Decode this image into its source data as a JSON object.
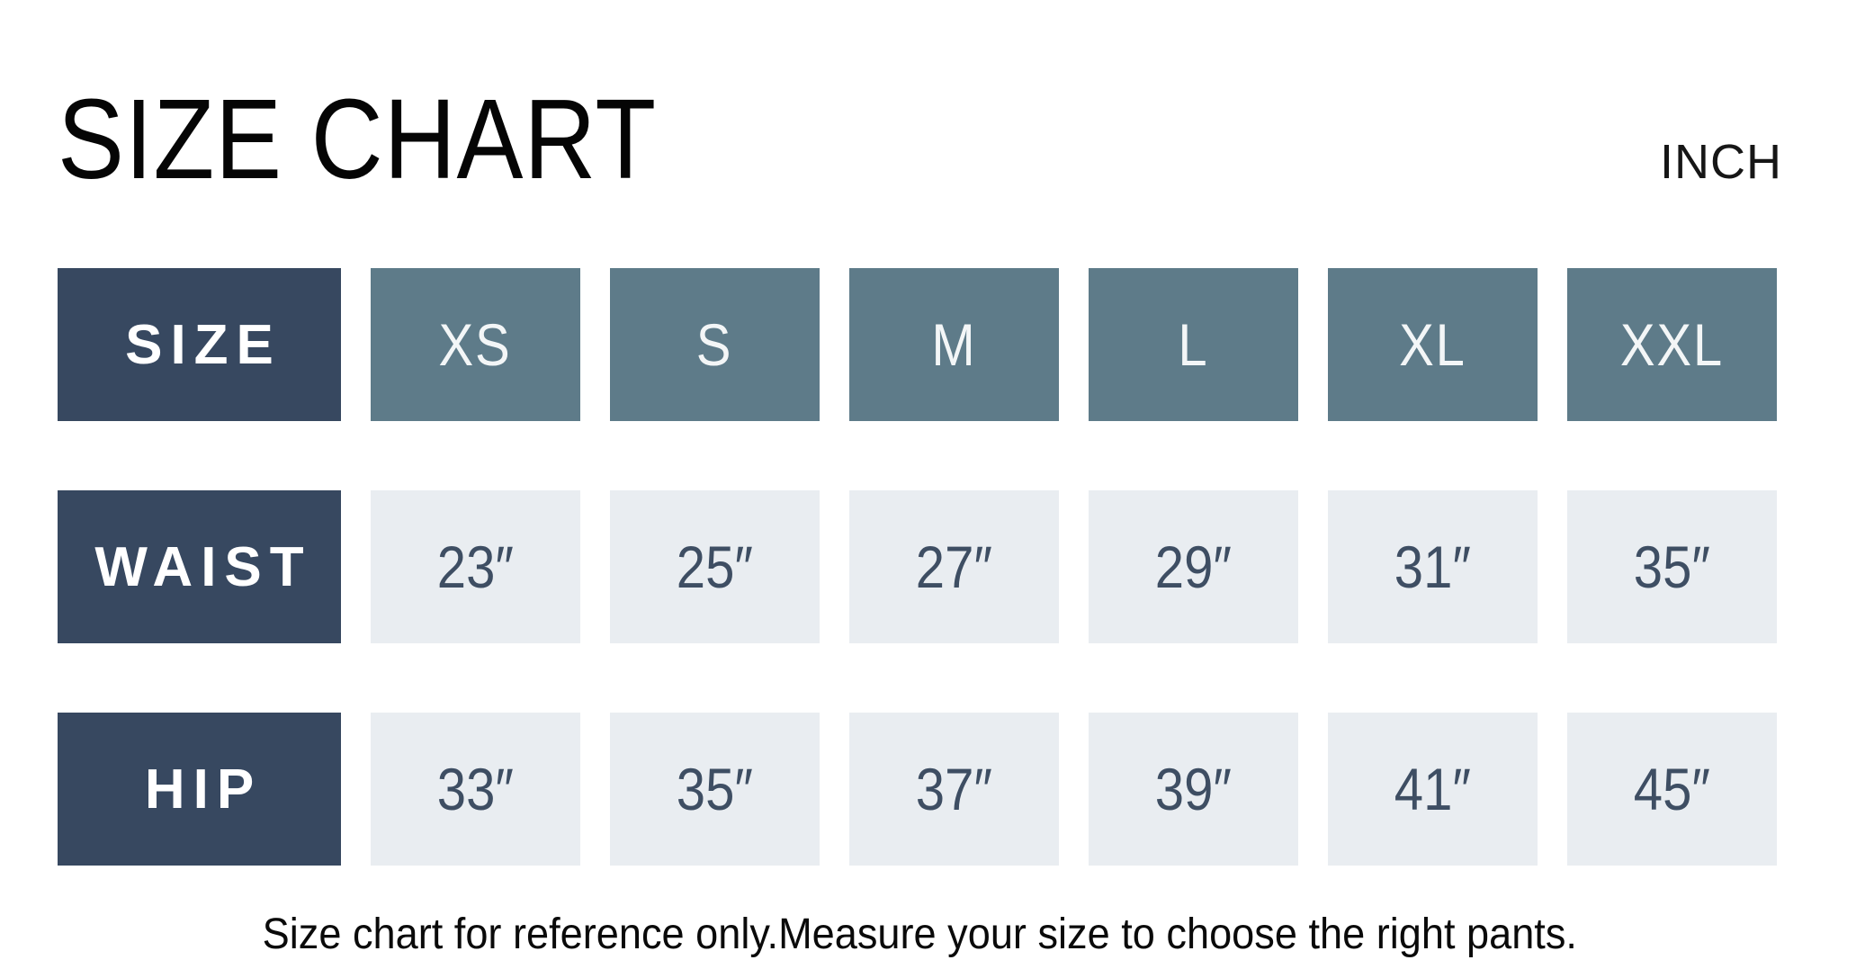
{
  "title": "SIZE CHART",
  "unit_label": "INCH",
  "footer_note": "Size chart for reference only.Measure your size to choose the right pants.",
  "colors": {
    "label_bg": "#374860",
    "size_bg": "#5e7b89",
    "size_text": "#f3f6f7",
    "value_bg": "#e9edf1",
    "value_text": "#3e4e63"
  },
  "table": {
    "rows": [
      {
        "label": "SIZE",
        "values": [
          "XS",
          "S",
          "M",
          "L",
          "XL",
          "XXL"
        ]
      },
      {
        "label": "WAIST",
        "values": [
          "23″",
          "25″",
          "27″",
          "29″",
          "31″",
          "35″"
        ]
      },
      {
        "label": "HIP",
        "values": [
          "33″",
          "35″",
          "37″",
          "39″",
          "41″",
          "45″"
        ]
      }
    ]
  },
  "chart_data": {
    "type": "table",
    "title": "SIZE CHART",
    "unit": "INCH",
    "columns": [
      "SIZE",
      "XS",
      "S",
      "M",
      "L",
      "XL",
      "XXL"
    ],
    "rows": [
      {
        "label": "WAIST",
        "values_inch": [
          23,
          25,
          27,
          29,
          31,
          35
        ]
      },
      {
        "label": "HIP",
        "values_inch": [
          33,
          35,
          37,
          39,
          41,
          45
        ]
      }
    ],
    "note": "Size chart for reference only.Measure your size to choose the right pants."
  }
}
